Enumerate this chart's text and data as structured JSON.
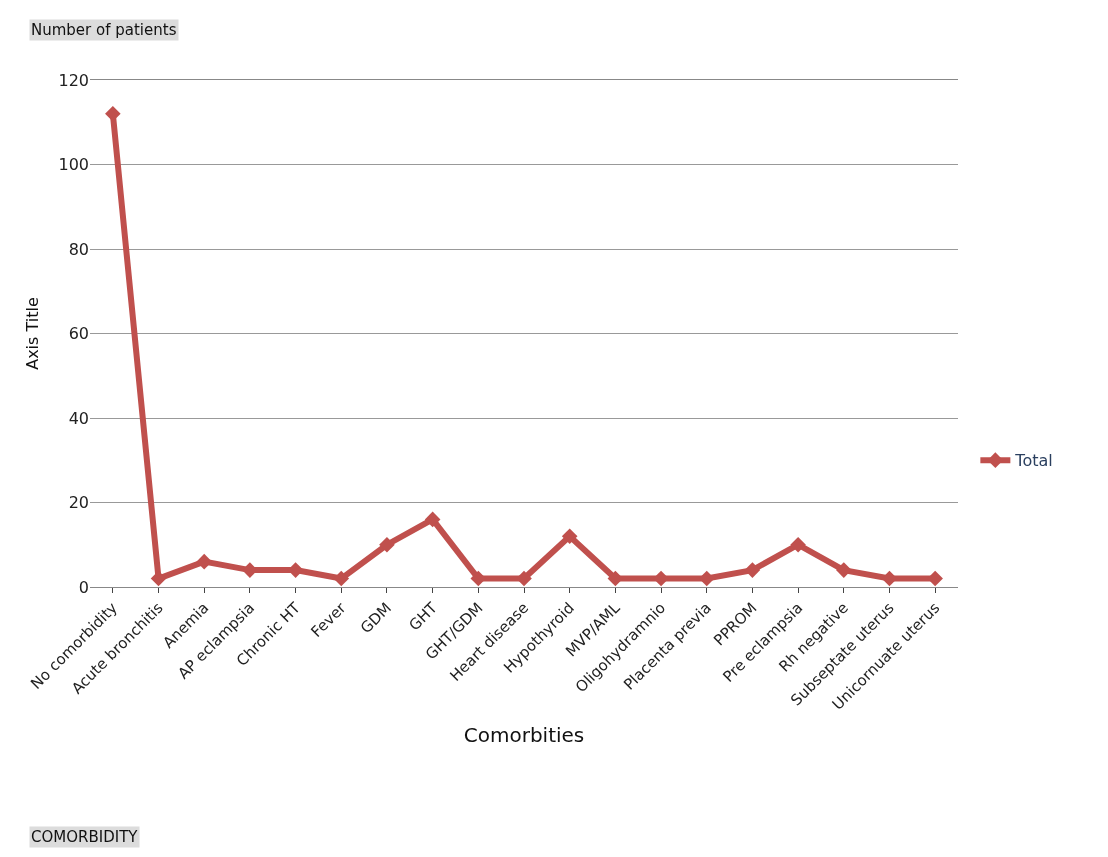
{
  "chart_data": {
    "type": "line",
    "xlabel": "Comorbities",
    "ylabel": "Axis Title",
    "annotations": [
      "Number of patients",
      "COMORBIDITY"
    ],
    "categories": [
      "No comorbidity",
      "Acute bronchitis",
      "Anemia",
      "AP eclampsia",
      "Chronic HT",
      "Fever",
      "GDM",
      "GHT",
      "GHT/GDM",
      "Heart disease",
      "Hypothyroid",
      "MVP/AML",
      "Oligohydramnio",
      "Placenta previa",
      "PPROM",
      "Pre eclampsia",
      "Rh negative",
      "Subseptate uterus",
      "Unicornuate uterus"
    ],
    "series": [
      {
        "name": "Total",
        "color": "#c0504d",
        "values": [
          112,
          2,
          6,
          4,
          4,
          2,
          10,
          16,
          2,
          2,
          12,
          2,
          2,
          2,
          4,
          10,
          4,
          2,
          2
        ]
      }
    ],
    "ylim": [
      0,
      120
    ],
    "yticks": [
      0,
      20,
      40,
      60,
      80,
      100,
      120
    ],
    "grid": "y",
    "legend": "right",
    "marker": "diamond",
    "line_style": "solid"
  }
}
